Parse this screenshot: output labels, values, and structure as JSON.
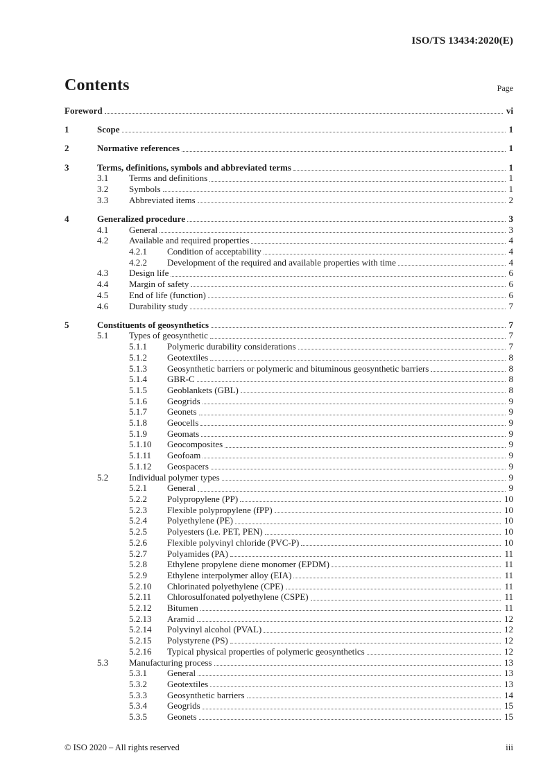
{
  "header": {
    "doc_ref": "ISO/TS 13434:2020(E)"
  },
  "toc_header": {
    "title": "Contents",
    "page_label": "Page"
  },
  "toc": {
    "rows": [
      {
        "num": "",
        "title": "Foreword",
        "page": "vi",
        "level": 0,
        "bold": true
      },
      {
        "num": "1",
        "title": "Scope",
        "page": "1",
        "level": 1,
        "bold": true
      },
      {
        "num": "2",
        "title": "Normative references",
        "page": "1",
        "level": 1,
        "bold": true
      },
      {
        "num": "3",
        "title": "Terms, definitions, symbols and abbreviated terms",
        "page": "1",
        "level": 1,
        "bold": true
      },
      {
        "num": "3.1",
        "title": "Terms and definitions",
        "page": "1",
        "level": 2,
        "bold": false
      },
      {
        "num": "3.2",
        "title": "Symbols",
        "page": "1",
        "level": 2,
        "bold": false
      },
      {
        "num": "3.3",
        "title": "Abbreviated items",
        "page": "2",
        "level": 2,
        "bold": false
      },
      {
        "num": "4",
        "title": "Generalized procedure",
        "page": "3",
        "level": 1,
        "bold": true
      },
      {
        "num": "4.1",
        "title": "General",
        "page": "3",
        "level": 2,
        "bold": false
      },
      {
        "num": "4.2",
        "title": "Available and required properties",
        "page": "4",
        "level": 2,
        "bold": false
      },
      {
        "num": "4.2.1",
        "title": "Condition of acceptability",
        "page": "4",
        "level": 3,
        "bold": false
      },
      {
        "num": "4.2.2",
        "title": "Development of the required and available properties with time",
        "page": "4",
        "level": 3,
        "bold": false
      },
      {
        "num": "4.3",
        "title": "Design life",
        "page": "6",
        "level": 2,
        "bold": false
      },
      {
        "num": "4.4",
        "title": "Margin of safety",
        "page": "6",
        "level": 2,
        "bold": false
      },
      {
        "num": "4.5",
        "title": "End of life (function)",
        "page": "6",
        "level": 2,
        "bold": false
      },
      {
        "num": "4.6",
        "title": "Durability study",
        "page": "7",
        "level": 2,
        "bold": false
      },
      {
        "num": "5",
        "title": "Constituents of geosynthetics",
        "page": "7",
        "level": 1,
        "bold": true
      },
      {
        "num": "5.1",
        "title": "Types of geosynthetic",
        "page": "7",
        "level": 2,
        "bold": false
      },
      {
        "num": "5.1.1",
        "title": "Polymeric durability considerations",
        "page": "7",
        "level": 3,
        "bold": false
      },
      {
        "num": "5.1.2",
        "title": "Geotextiles",
        "page": "8",
        "level": 3,
        "bold": false
      },
      {
        "num": "5.1.3",
        "title": "Geosynthetic barriers or polymeric and bituminous geosynthetic barriers",
        "page": "8",
        "level": 3,
        "bold": false
      },
      {
        "num": "5.1.4",
        "title": "GBR-C",
        "page": "8",
        "level": 3,
        "bold": false
      },
      {
        "num": "5.1.5",
        "title": "Geoblankets (GBL)",
        "page": "8",
        "level": 3,
        "bold": false
      },
      {
        "num": "5.1.6",
        "title": "Geogrids",
        "page": "9",
        "level": 3,
        "bold": false
      },
      {
        "num": "5.1.7",
        "title": "Geonets",
        "page": "9",
        "level": 3,
        "bold": false
      },
      {
        "num": "5.1.8",
        "title": "Geocells",
        "page": "9",
        "level": 3,
        "bold": false
      },
      {
        "num": "5.1.9",
        "title": "Geomats",
        "page": "9",
        "level": 3,
        "bold": false
      },
      {
        "num": "5.1.10",
        "title": "Geocomposites",
        "page": "9",
        "level": 3,
        "bold": false
      },
      {
        "num": "5.1.11",
        "title": "Geofoam",
        "page": "9",
        "level": 3,
        "bold": false
      },
      {
        "num": "5.1.12",
        "title": "Geospacers",
        "page": "9",
        "level": 3,
        "bold": false
      },
      {
        "num": "5.2",
        "title": "Individual polymer types",
        "page": "9",
        "level": 2,
        "bold": false
      },
      {
        "num": "5.2.1",
        "title": "General",
        "page": "9",
        "level": 3,
        "bold": false
      },
      {
        "num": "5.2.2",
        "title": "Polypropylene (PP)",
        "page": "10",
        "level": 3,
        "bold": false
      },
      {
        "num": "5.2.3",
        "title": "Flexible polypropylene (fPP)",
        "page": "10",
        "level": 3,
        "bold": false
      },
      {
        "num": "5.2.4",
        "title": "Polyethylene (PE)",
        "page": "10",
        "level": 3,
        "bold": false
      },
      {
        "num": "5.2.5",
        "title": "Polyesters (i.e. PET, PEN)",
        "page": "10",
        "level": 3,
        "bold": false
      },
      {
        "num": "5.2.6",
        "title": "Flexible polyvinyl chloride (PVC-P)",
        "page": "10",
        "level": 3,
        "bold": false
      },
      {
        "num": "5.2.7",
        "title": "Polyamides (PA)",
        "page": "11",
        "level": 3,
        "bold": false
      },
      {
        "num": "5.2.8",
        "title": "Ethylene propylene diene monomer (EPDM)",
        "page": "11",
        "level": 3,
        "bold": false
      },
      {
        "num": "5.2.9",
        "title": "Ethylene interpolymer alloy (EIA)",
        "page": "11",
        "level": 3,
        "bold": false
      },
      {
        "num": "5.2.10",
        "title": "Chlorinated polyethylene (CPE)",
        "page": "11",
        "level": 3,
        "bold": false
      },
      {
        "num": "5.2.11",
        "title": "Chlorosulfonated polyethylene (CSPE)",
        "page": "11",
        "level": 3,
        "bold": false
      },
      {
        "num": "5.2.12",
        "title": "Bitumen",
        "page": "11",
        "level": 3,
        "bold": false
      },
      {
        "num": "5.2.13",
        "title": "Aramid",
        "page": "12",
        "level": 3,
        "bold": false
      },
      {
        "num": "5.2.14",
        "title": "Polyvinyl alcohol (PVAL)",
        "page": "12",
        "level": 3,
        "bold": false
      },
      {
        "num": "5.2.15",
        "title": "Polystyrene (PS)",
        "page": "12",
        "level": 3,
        "bold": false
      },
      {
        "num": "5.2.16",
        "title": "Typical physical properties of polymeric geosynthetics",
        "page": "12",
        "level": 3,
        "bold": false
      },
      {
        "num": "5.3",
        "title": "Manufacturing process",
        "page": "13",
        "level": 2,
        "bold": false
      },
      {
        "num": "5.3.1",
        "title": "General",
        "page": "13",
        "level": 3,
        "bold": false
      },
      {
        "num": "5.3.2",
        "title": "Geotextiles",
        "page": "13",
        "level": 3,
        "bold": false
      },
      {
        "num": "5.3.3",
        "title": "Geosynthetic barriers",
        "page": "14",
        "level": 3,
        "bold": false
      },
      {
        "num": "5.3.4",
        "title": "Geogrids",
        "page": "15",
        "level": 3,
        "bold": false
      },
      {
        "num": "5.3.5",
        "title": "Geonets",
        "page": "15",
        "level": 3,
        "bold": false
      }
    ]
  },
  "footer": {
    "copyright": "© ISO 2020 – All rights reserved",
    "page_number": "iii"
  },
  "colors": {
    "text": "#1c1c1c",
    "leader_dots": "#5a5a5a",
    "background": "#ffffff"
  }
}
